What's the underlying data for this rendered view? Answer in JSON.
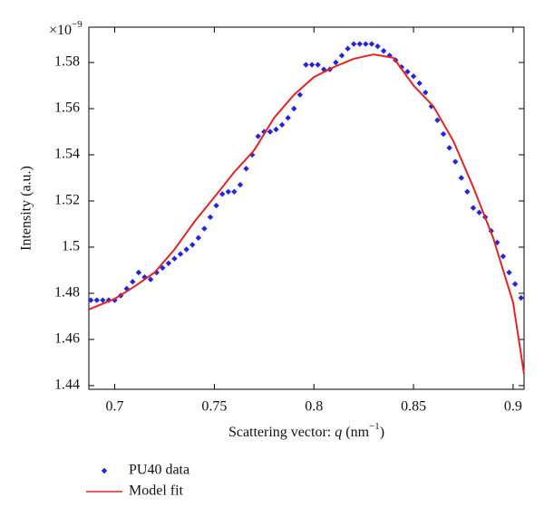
{
  "chart_data": {
    "type": "scatter",
    "y_label": "Intensity (a.u.)",
    "x_label": [
      "Scattering vector: ",
      "q",
      " (nm",
      "−1",
      ")"
    ],
    "axis_multiplier": {
      "base": "×10",
      "exponent": "−9"
    },
    "xlim": [
      0.687,
      0.9055
    ],
    "ylim": [
      1.4384,
      1.5953
    ],
    "xticks": [
      0.7,
      0.75,
      0.8,
      0.85,
      0.9
    ],
    "yticks": [
      1.44,
      1.46,
      1.48,
      1.5,
      1.52,
      1.54,
      1.56,
      1.58
    ],
    "legend": "bottom-left",
    "series": [
      {
        "name": "PU40 data",
        "type": "scatter",
        "color": "#2424e0",
        "x": [
          0.688,
          0.691,
          0.694,
          0.697,
          0.7,
          0.703,
          0.706,
          0.709,
          0.712,
          0.715,
          0.718,
          0.721,
          0.724,
          0.727,
          0.73,
          0.733,
          0.736,
          0.739,
          0.742,
          0.745,
          0.748,
          0.751,
          0.754,
          0.757,
          0.76,
          0.763,
          0.766,
          0.769,
          0.772,
          0.775,
          0.778,
          0.781,
          0.784,
          0.787,
          0.79,
          0.793,
          0.796,
          0.799,
          0.802,
          0.805,
          0.808,
          0.811,
          0.814,
          0.817,
          0.82,
          0.823,
          0.826,
          0.829,
          0.832,
          0.835,
          0.838,
          0.841,
          0.844,
          0.847,
          0.85,
          0.853,
          0.856,
          0.859,
          0.862,
          0.865,
          0.868,
          0.871,
          0.874,
          0.877,
          0.88,
          0.883,
          0.886,
          0.889,
          0.892,
          0.895,
          0.898,
          0.901,
          0.904
        ],
        "values": [
          1.477,
          1.477,
          1.477,
          1.477,
          1.477,
          1.479,
          1.482,
          1.485,
          1.489,
          1.487,
          1.486,
          1.489,
          1.491,
          1.493,
          1.495,
          1.497,
          1.499,
          1.501,
          1.504,
          1.508,
          1.513,
          1.518,
          1.523,
          1.524,
          1.524,
          1.527,
          1.534,
          1.54,
          1.548,
          1.55,
          1.55,
          1.551,
          1.553,
          1.556,
          1.56,
          1.566,
          1.579,
          1.579,
          1.579,
          1.577,
          1.577,
          1.58,
          1.583,
          1.586,
          1.588,
          1.588,
          1.588,
          1.588,
          1.587,
          1.585,
          1.583,
          1.581,
          1.578,
          1.576,
          1.574,
          1.571,
          1.567,
          1.561,
          1.555,
          1.549,
          1.543,
          1.537,
          1.53,
          1.524,
          1.517,
          1.515,
          1.513,
          1.507,
          1.502,
          1.496,
          1.489,
          1.484,
          1.478
        ]
      },
      {
        "name": "Model fit",
        "type": "line",
        "color": "#e02424",
        "x": [
          0.687,
          0.7,
          0.71,
          0.72,
          0.73,
          0.74,
          0.75,
          0.76,
          0.77,
          0.78,
          0.79,
          0.8,
          0.81,
          0.82,
          0.83,
          0.84,
          0.85,
          0.86,
          0.87,
          0.88,
          0.89,
          0.9,
          0.9055
        ],
        "values": [
          1.473,
          1.4776,
          1.483,
          1.489,
          1.499,
          1.511,
          1.5216,
          1.5325,
          1.542,
          1.556,
          1.566,
          1.5737,
          1.578,
          1.5816,
          1.5835,
          1.582,
          1.57,
          1.561,
          1.546,
          1.526,
          1.504,
          1.476,
          1.445
        ]
      }
    ]
  }
}
